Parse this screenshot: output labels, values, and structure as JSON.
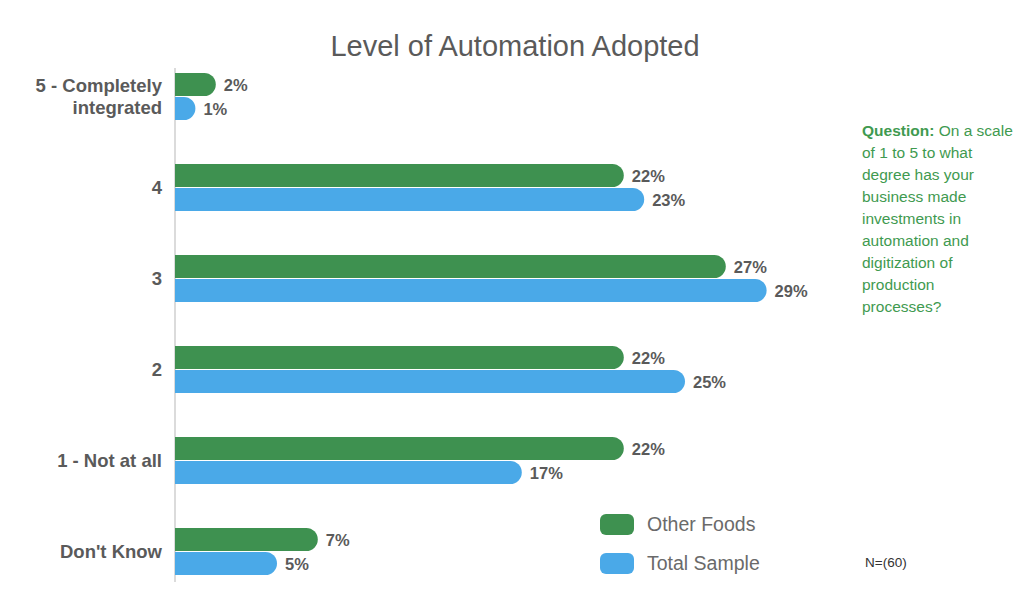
{
  "chart_data": {
    "type": "bar",
    "orientation": "horizontal",
    "title": "Level of Automation Adopted",
    "categories": [
      "5 - Completely integrated",
      "4",
      "3",
      "2",
      "1 - Not at all",
      "Don't Know"
    ],
    "series": [
      {
        "name": "Other Foods",
        "color": "#3e9150",
        "values": [
          2,
          22,
          27,
          22,
          22,
          7
        ],
        "value_labels": [
          "2%",
          "22%",
          "27%",
          "22%",
          "22%",
          "7%"
        ]
      },
      {
        "name": "Total Sample",
        "color": "#4aa9e8",
        "values": [
          1,
          23,
          29,
          25,
          17,
          5
        ],
        "value_labels": [
          "1%",
          "23%",
          "29%",
          "25%",
          "17%",
          "5%"
        ]
      }
    ],
    "xlim": [
      0,
      40
    ],
    "data_labels": true,
    "tick_labels": "y",
    "grid": false,
    "legend": "lower right",
    "annotations": [
      "Question:",
      "On a scale of 1 to 5 to what degree has your business made investments in automation and digitization of  production processes?",
      "N=(60)"
    ]
  }
}
